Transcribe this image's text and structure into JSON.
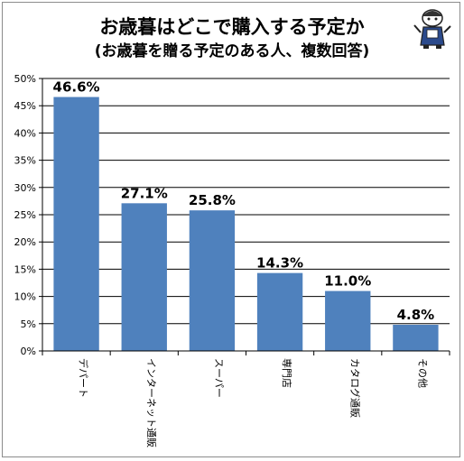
{
  "chart_data": {
    "type": "bar",
    "title": "お歳暮はどこで購入する予定か",
    "subtitle": "(お歳暮を贈る予定のある人、複数回答)",
    "categories": [
      "デパート",
      "インターネット通販",
      "スーパー",
      "専門店",
      "カタログ通販",
      "その他"
    ],
    "values": [
      46.6,
      27.1,
      25.8,
      14.3,
      11.0,
      4.8
    ],
    "data_labels": [
      "46.6%",
      "27.1%",
      "25.8%",
      "14.3%",
      "11.0%",
      "4.8%"
    ],
    "yticks": [
      "0%",
      "5%",
      "10%",
      "15%",
      "20%",
      "25%",
      "30%",
      "35%",
      "40%",
      "45%",
      "50%"
    ],
    "ylim": [
      0,
      50
    ],
    "grid": true,
    "xlabel": "",
    "ylabel": "",
    "bar_color": "#4f81bd",
    "grid_color": "#000000"
  },
  "mascot_icon": "mascot-character-icon"
}
